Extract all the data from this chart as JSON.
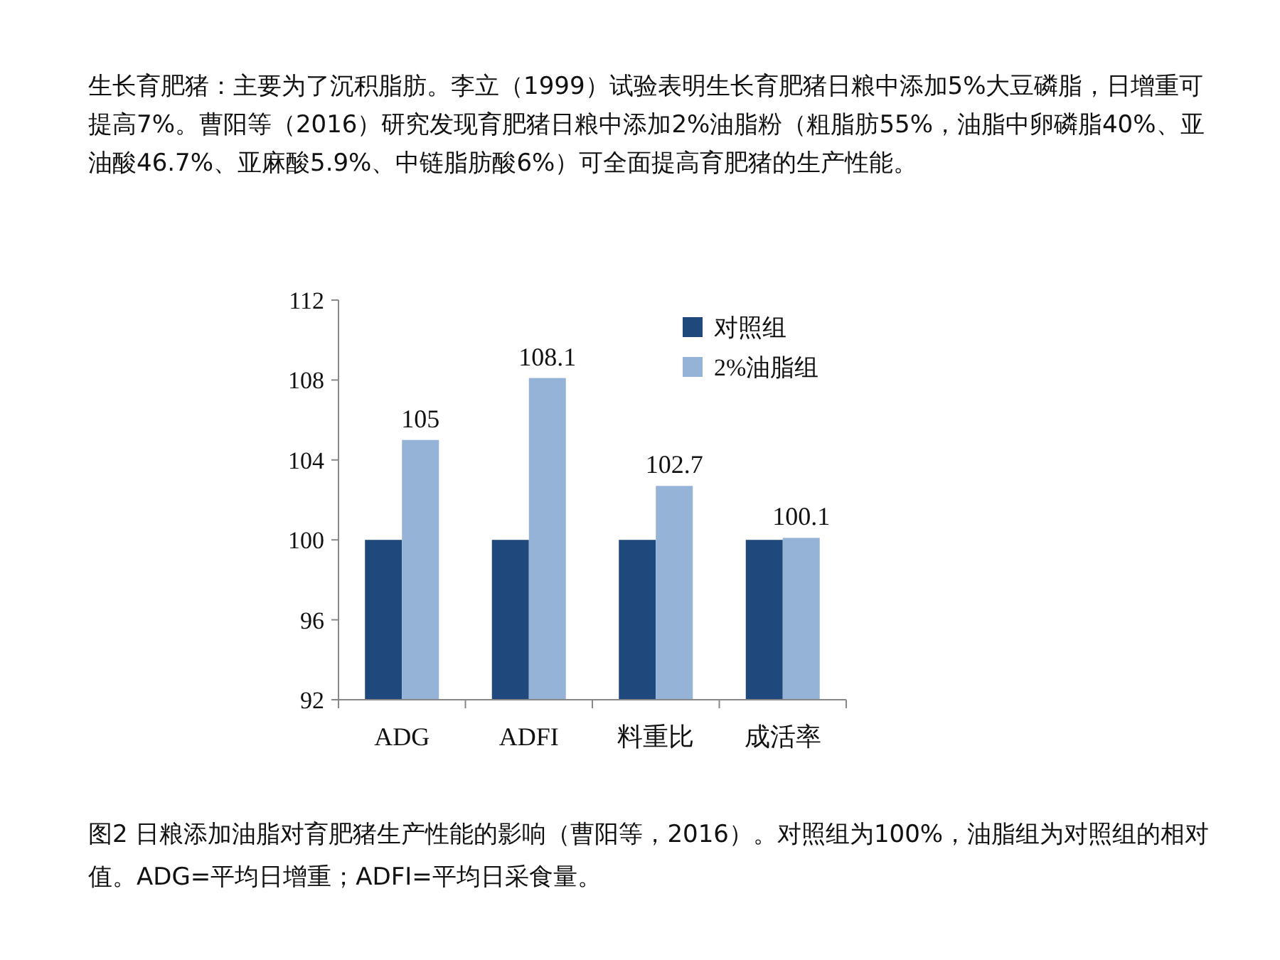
{
  "chart_data": {
    "type": "bar",
    "title": "生长育肥猪：主要为了沉积脂肪。李立（1999）试验表明生长育肥猪日粮中添加5%大豆磷脂，日增重可提高7%。曹阳等（2016）研究发现育肥猪日粮中添加2%油脂粉（粗脂肪55%，油脂中卵磷脂40%、亚油酸46.7%、亚麻酸5.9%、中链脂肪酸6%）可全面提高育肥猪的生产性能。",
    "categories": [
      "ADG",
      "ADFI",
      "料重比",
      "成活率"
    ],
    "series": [
      {
        "name": "对照组",
        "color": "#1f497d",
        "values": [
          100,
          100,
          100,
          100
        ]
      },
      {
        "name": "2%油脂组",
        "color": "#95b3d7",
        "values": [
          105,
          108.1,
          102.7,
          100.1
        ],
        "value_labels": [
          "105",
          "108.1",
          "102.7",
          "100.1"
        ]
      }
    ],
    "ylim": [
      92,
      112
    ],
    "yticks": [
      92,
      96,
      100,
      104,
      108,
      112
    ],
    "grid": false,
    "legend": "top right",
    "annotations": [
      "图2  日粮添加油脂对育肥猪生产性能的影响（曹阳等，2016）。对照组为100%，油脂组为对照组的相对值。ADG=平均日增重；ADFI=平均日采食量。"
    ]
  }
}
